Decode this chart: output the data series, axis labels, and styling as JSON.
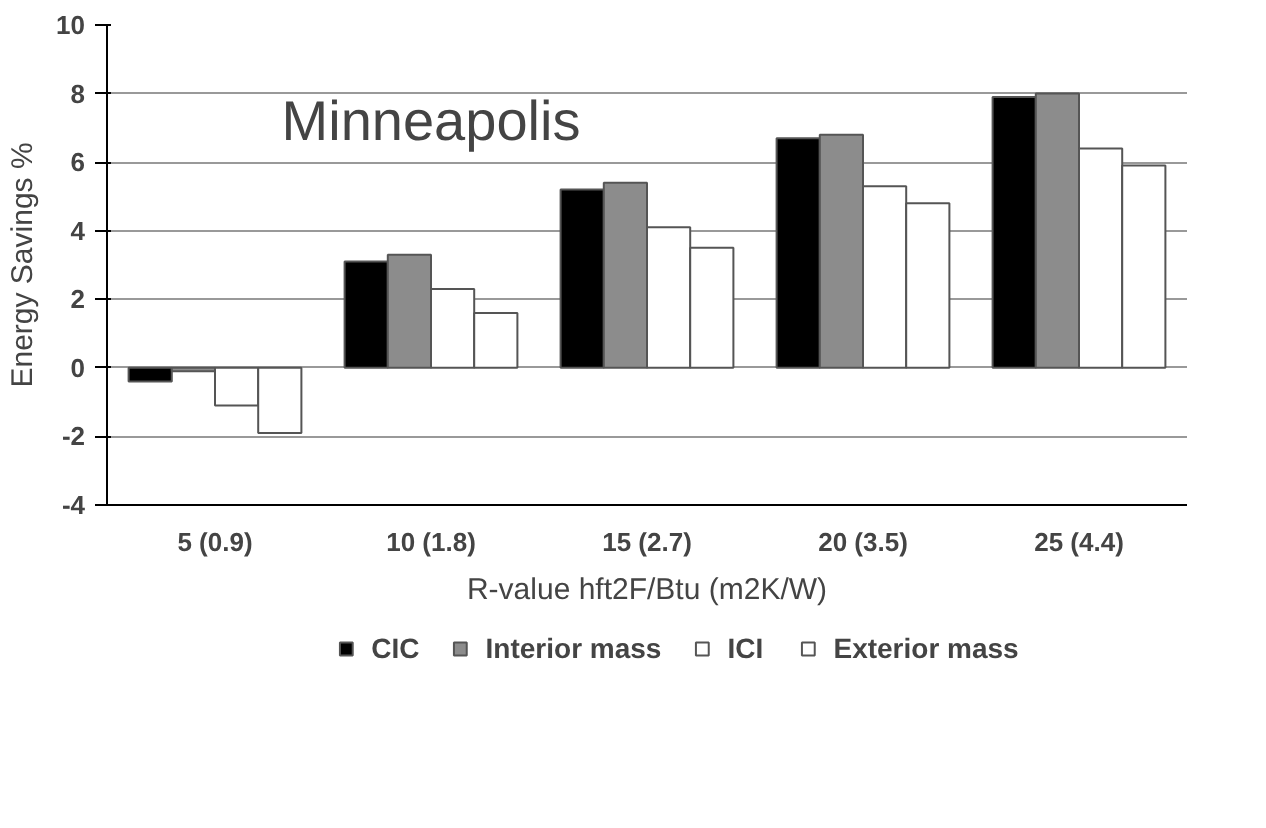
{
  "chart_data": {
    "type": "bar",
    "ylabel": "Energy Savings %",
    "xlabel": "R-value hft2F/Btu (m2K/W)",
    "annotations": [
      "Minneapolis"
    ],
    "categories": [
      "5 (0.9)",
      "10 (1.8)",
      "15 (2.7)",
      "20 (3.5)",
      "25 (4.4)"
    ],
    "series": [
      {
        "name": "CIC",
        "color": "#000000",
        "values": [
          -0.4,
          3.1,
          5.2,
          6.7,
          7.9
        ]
      },
      {
        "name": "Interior mass",
        "color": "#8c8c8c",
        "values": [
          -0.1,
          3.3,
          5.4,
          6.8,
          8.0
        ]
      },
      {
        "name": "ICI",
        "color": "#ffffff",
        "values": [
          -1.1,
          2.3,
          4.1,
          5.3,
          6.4
        ]
      },
      {
        "name": "Exterior mass",
        "color": "#ffffff",
        "values": [
          -1.9,
          1.6,
          3.5,
          4.8,
          5.9
        ]
      }
    ],
    "ylim": [
      -4,
      10
    ],
    "yticks": [
      -4,
      -2,
      0,
      2,
      4,
      6,
      8,
      10
    ],
    "grid": "y",
    "legend": "bottom"
  }
}
